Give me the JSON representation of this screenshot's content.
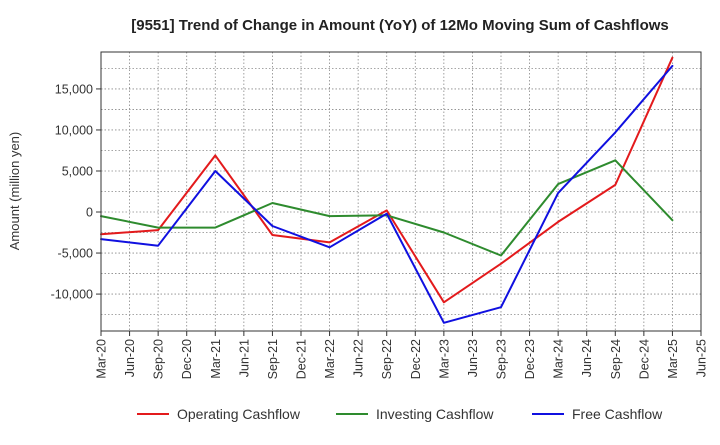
{
  "chart_data": {
    "type": "line",
    "title": "[9551]  Trend of Change in Amount (YoY) of 12Mo Moving Sum of Cashflows",
    "xlabel": "",
    "ylabel": "Amount (million yen)",
    "ylim": [
      -14500,
      19500
    ],
    "yticks": [
      -10000,
      -5000,
      0,
      5000,
      10000,
      15000
    ],
    "ytick_labels": [
      "-10,000",
      "-5,000",
      "0",
      "5,000",
      "10,000",
      "15,000"
    ],
    "categories": [
      "Mar-20",
      "Jun-20",
      "Sep-20",
      "Dec-20",
      "Mar-21",
      "Jun-21",
      "Sep-21",
      "Dec-21",
      "Mar-22",
      "Jun-22",
      "Sep-22",
      "Dec-22",
      "Mar-23",
      "Jun-23",
      "Sep-23",
      "Dec-23",
      "Mar-24",
      "Jun-24",
      "Sep-24",
      "Dec-24",
      "Mar-25",
      "Jun-25"
    ],
    "grid": true,
    "legend_position": "bottom",
    "series": [
      {
        "name": "Operating Cashflow",
        "color": "#e31a1c",
        "points": [
          [
            0,
            -2700
          ],
          [
            2,
            -2200
          ],
          [
            4,
            6900
          ],
          [
            6,
            -2800
          ],
          [
            8,
            -3700
          ],
          [
            10,
            200
          ],
          [
            12,
            -11000
          ],
          [
            14,
            -6300
          ],
          [
            16,
            -1200
          ],
          [
            18,
            3300
          ],
          [
            20,
            18800
          ]
        ]
      },
      {
        "name": "Investing Cashflow",
        "color": "#2e8b2e",
        "points": [
          [
            0,
            -500
          ],
          [
            2,
            -1900
          ],
          [
            4,
            -1900
          ],
          [
            6,
            1100
          ],
          [
            8,
            -500
          ],
          [
            10,
            -400
          ],
          [
            12,
            -2500
          ],
          [
            14,
            -5300
          ],
          [
            16,
            3400
          ],
          [
            18,
            6300
          ],
          [
            20,
            -1000
          ]
        ]
      },
      {
        "name": "Free Cashflow",
        "color": "#1010e0",
        "points": [
          [
            0,
            -3300
          ],
          [
            2,
            -4100
          ],
          [
            4,
            5000
          ],
          [
            6,
            -1700
          ],
          [
            8,
            -4300
          ],
          [
            10,
            -200
          ],
          [
            12,
            -13500
          ],
          [
            14,
            -11600
          ],
          [
            16,
            2300
          ],
          [
            18,
            9700
          ],
          [
            20,
            17800
          ]
        ]
      }
    ]
  }
}
